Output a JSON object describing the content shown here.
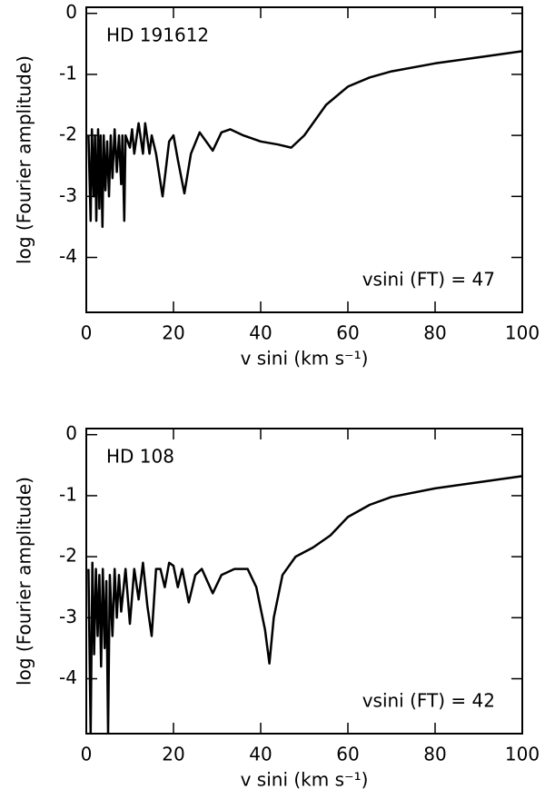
{
  "chart_data": [
    {
      "type": "line",
      "annotations": [
        "HD 191612",
        "vsini (FT) = 47"
      ],
      "xlabel": "v sini (km s⁻¹)",
      "ylabel": "log (Fourier amplitude)",
      "xlim": [
        0,
        100
      ],
      "ylim": [
        -4.9,
        0.1
      ],
      "xticks": [
        0,
        20,
        40,
        60,
        80,
        100
      ],
      "yticks": [
        0,
        -1,
        -2,
        -3,
        -4
      ],
      "color": "#000000",
      "x": [
        0.5,
        1,
        1.3,
        1.7,
        2,
        2.3,
        2.7,
        3,
        3.3,
        3.7,
        4,
        4.4,
        4.8,
        5.2,
        5.6,
        6,
        6.5,
        7,
        7.5,
        8,
        8.3,
        8.7,
        9,
        10,
        10.5,
        11,
        12,
        13,
        13.5,
        14.5,
        15,
        16,
        17.5,
        19,
        20,
        21,
        22.5,
        24,
        26,
        29,
        31,
        33,
        36,
        40,
        44,
        47,
        50,
        55,
        60,
        65,
        70,
        80,
        90,
        100
      ],
      "values": [
        -2.0,
        -3.4,
        -1.9,
        -3.0,
        -2.0,
        -3.4,
        -1.9,
        -3.2,
        -2.0,
        -3.5,
        -2.0,
        -2.9,
        -2.1,
        -3.0,
        -2.0,
        -2.7,
        -1.9,
        -2.6,
        -2.0,
        -2.8,
        -2.0,
        -3.4,
        -2.0,
        -2.2,
        -1.9,
        -2.3,
        -1.8,
        -2.3,
        -1.8,
        -2.3,
        -2.0,
        -2.3,
        -3.0,
        -2.1,
        -2.0,
        -2.4,
        -2.95,
        -2.3,
        -1.95,
        -2.25,
        -1.95,
        -1.9,
        -2.0,
        -2.1,
        -2.15,
        -2.2,
        -2.0,
        -1.5,
        -1.2,
        -1.05,
        -0.95,
        -0.82,
        -0.72,
        -0.62
      ]
    },
    {
      "type": "line",
      "annotations": [
        "HD 108",
        "vsini (FT) = 42"
      ],
      "xlabel": "v sini (km s⁻¹)",
      "ylabel": "log (Fourier amplitude)",
      "xlim": [
        0,
        100
      ],
      "ylim": [
        -4.9,
        0.1
      ],
      "xticks": [
        0,
        20,
        40,
        60,
        80,
        100
      ],
      "yticks": [
        0,
        -1,
        -2,
        -3,
        -4
      ],
      "color": "#000000",
      "x": [
        0.5,
        1,
        1.4,
        1.8,
        2.2,
        2.6,
        3,
        3.4,
        3.8,
        4.2,
        4.6,
        5,
        5.4,
        6,
        6.5,
        7,
        7.5,
        8,
        9,
        10,
        11,
        12,
        13,
        14,
        15,
        16,
        17,
        18,
        19,
        20,
        21,
        22,
        23.5,
        25,
        26.5,
        29,
        31,
        34,
        37,
        39,
        41,
        42,
        43,
        45,
        48,
        52,
        56,
        60,
        65,
        70,
        80,
        90,
        100
      ],
      "values": [
        -2.2,
        -4.9,
        -2.1,
        -3.6,
        -2.2,
        -3.3,
        -2.3,
        -3.8,
        -2.2,
        -3.5,
        -2.4,
        -4.9,
        -2.3,
        -3.3,
        -2.2,
        -3.0,
        -2.3,
        -2.9,
        -2.2,
        -3.1,
        -2.2,
        -2.7,
        -2.1,
        -2.8,
        -3.3,
        -2.2,
        -2.2,
        -2.5,
        -2.1,
        -2.15,
        -2.5,
        -2.2,
        -2.75,
        -2.3,
        -2.2,
        -2.6,
        -2.3,
        -2.2,
        -2.2,
        -2.5,
        -3.2,
        -3.75,
        -3.0,
        -2.3,
        -2.0,
        -1.85,
        -1.65,
        -1.35,
        -1.15,
        -1.02,
        -0.88,
        -0.78,
        -0.68
      ]
    }
  ]
}
